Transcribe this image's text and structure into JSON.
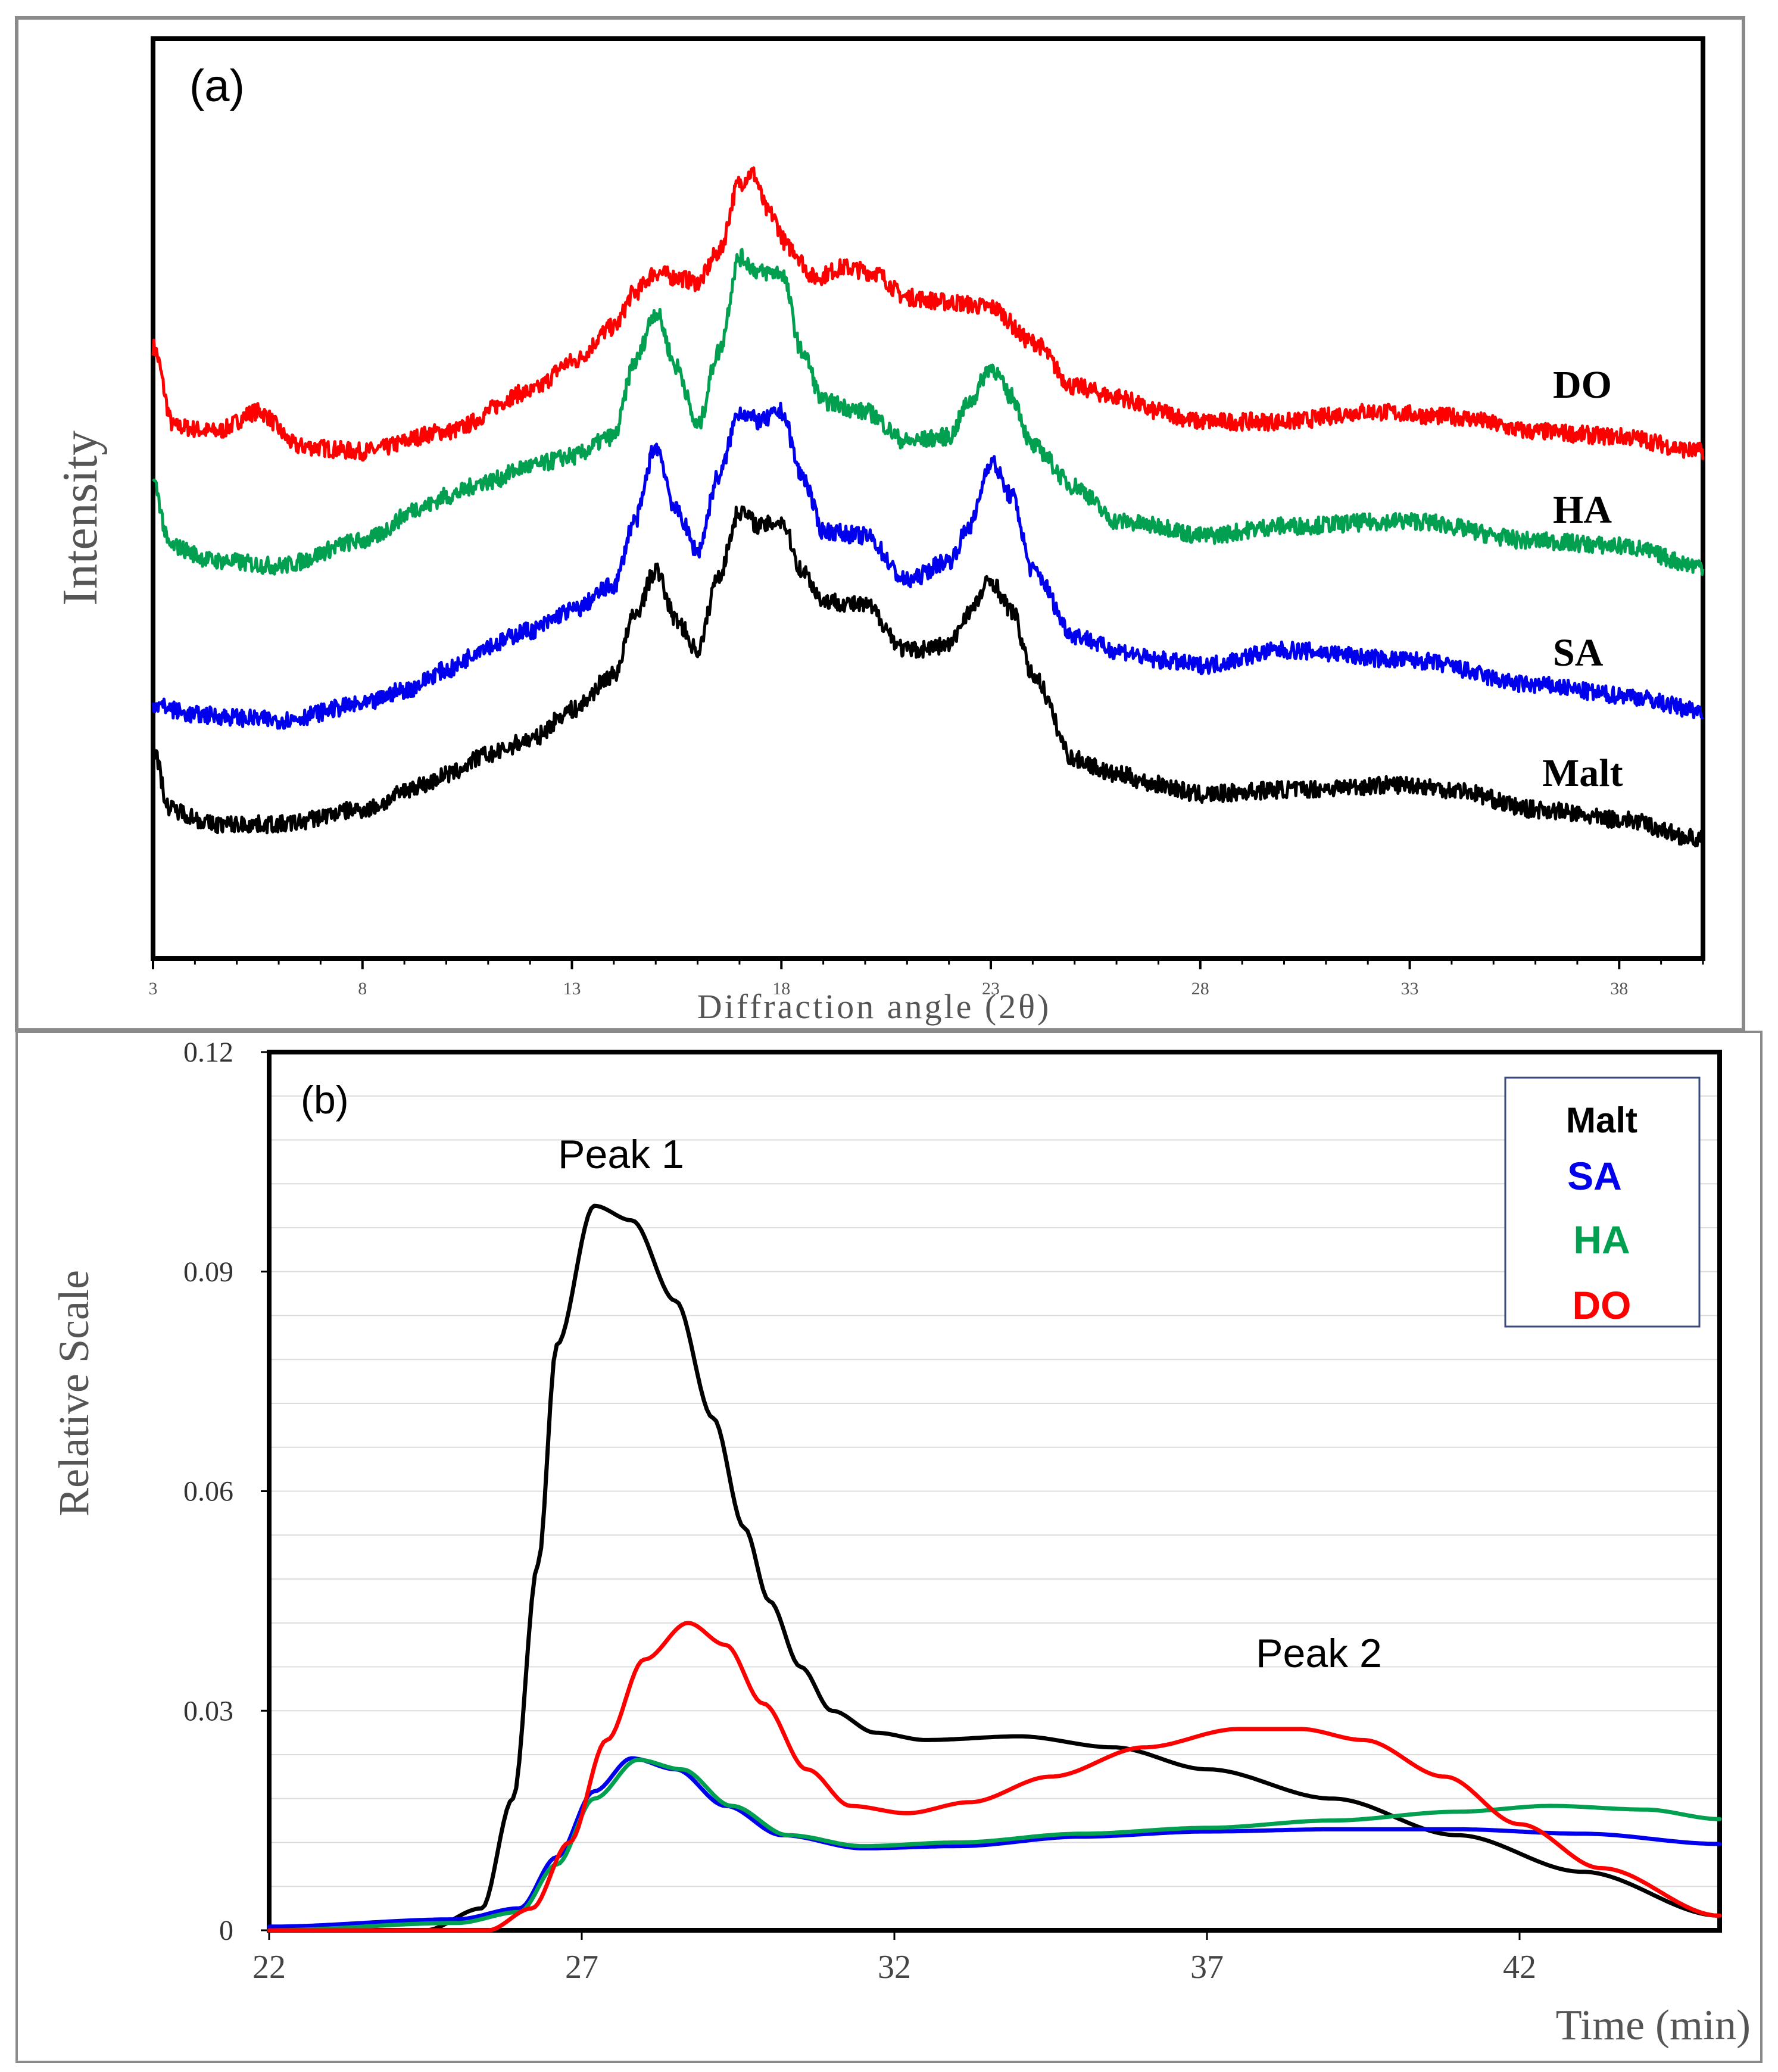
{
  "chart_data": [
    {
      "type": "line",
      "panel_label": "(a)",
      "xlabel": "Diffraction angle (2θ)",
      "ylabel": "Intensity",
      "xlim": [
        3,
        40
      ],
      "xticks": [
        3,
        8,
        13,
        18,
        23,
        28,
        33,
        38
      ],
      "ylim": [
        0,
        1.85
      ],
      "y_ticks_shown": false,
      "series": [
        {
          "name": "DO",
          "color": "#ff0000",
          "x": [
            3,
            3.5,
            4.5,
            5.5,
            6.5,
            8,
            10,
            12,
            13,
            14,
            14.5,
            15,
            15.5,
            16,
            16.5,
            17,
            17.3,
            17.7,
            18.2,
            18.8,
            19.5,
            20.2,
            21,
            22,
            23,
            24,
            25,
            26,
            27,
            28,
            30,
            32,
            34,
            36,
            38,
            40
          ],
          "y": [
            1.23,
            1.07,
            1.06,
            1.1,
            1.03,
            1.02,
            1.06,
            1.14,
            1.2,
            1.27,
            1.34,
            1.38,
            1.37,
            1.36,
            1.42,
            1.56,
            1.58,
            1.5,
            1.43,
            1.37,
            1.39,
            1.38,
            1.33,
            1.32,
            1.31,
            1.24,
            1.15,
            1.13,
            1.1,
            1.08,
            1.08,
            1.1,
            1.09,
            1.06,
            1.05,
            1.02
          ]
        },
        {
          "name": "HA",
          "color": "#00a050",
          "x": [
            3,
            3.4,
            4.5,
            6,
            8,
            9.5,
            10,
            11,
            12,
            13,
            14,
            14.5,
            15,
            15.5,
            16,
            16.5,
            17,
            17.5,
            18,
            18.5,
            19,
            20,
            21,
            22,
            22.5,
            23,
            23.5,
            24,
            25,
            26,
            27,
            28,
            30,
            33,
            36,
            38,
            40
          ],
          "y": [
            0.96,
            0.83,
            0.8,
            0.79,
            0.84,
            0.91,
            0.93,
            0.96,
            0.99,
            1.01,
            1.05,
            1.2,
            1.3,
            1.19,
            1.07,
            1.22,
            1.41,
            1.38,
            1.38,
            1.22,
            1.12,
            1.1,
            1.04,
            1.05,
            1.12,
            1.19,
            1.13,
            1.03,
            0.95,
            0.88,
            0.87,
            0.85,
            0.87,
            0.88,
            0.84,
            0.83,
            0.79
          ]
        },
        {
          "name": "SA",
          "color": "#0000ee",
          "x": [
            3,
            4,
            6,
            8,
            9,
            10,
            11,
            12,
            13,
            14,
            14.5,
            15,
            15.5,
            16,
            16.5,
            17,
            17.5,
            18,
            18.5,
            19,
            20,
            21,
            22,
            22.5,
            23,
            23.5,
            24,
            25,
            26,
            27,
            28,
            30,
            33,
            36,
            38,
            40
          ],
          "y": [
            0.51,
            0.49,
            0.48,
            0.51,
            0.54,
            0.58,
            0.63,
            0.66,
            0.7,
            0.75,
            0.88,
            1.03,
            0.9,
            0.82,
            0.97,
            1.1,
            1.08,
            1.1,
            0.97,
            0.86,
            0.85,
            0.76,
            0.8,
            0.87,
            1.0,
            0.93,
            0.78,
            0.65,
            0.62,
            0.6,
            0.59,
            0.62,
            0.6,
            0.55,
            0.53,
            0.5
          ]
        },
        {
          "name": "Malt",
          "color": "#000000",
          "x": [
            3,
            3.4,
            4.5,
            6,
            8,
            9.5,
            10,
            11,
            12,
            13,
            14,
            14.5,
            15,
            15.5,
            16,
            16.5,
            17,
            17.5,
            18,
            18.5,
            19,
            20,
            21,
            22,
            22.5,
            23,
            23.5,
            24,
            25,
            26,
            27,
            28,
            30,
            33,
            34,
            36,
            38,
            40
          ],
          "y": [
            0.42,
            0.3,
            0.27,
            0.27,
            0.3,
            0.35,
            0.37,
            0.41,
            0.44,
            0.5,
            0.57,
            0.69,
            0.78,
            0.68,
            0.62,
            0.77,
            0.9,
            0.87,
            0.88,
            0.78,
            0.72,
            0.71,
            0.62,
            0.63,
            0.7,
            0.76,
            0.7,
            0.57,
            0.4,
            0.37,
            0.35,
            0.33,
            0.34,
            0.35,
            0.34,
            0.3,
            0.28,
            0.24
          ]
        }
      ],
      "legend_labels": [
        {
          "name": "DO",
          "color": "#000000"
        },
        {
          "name": "HA",
          "color": "#000000"
        },
        {
          "name": "SA",
          "color": "#000000"
        },
        {
          "name": "Malt",
          "color": "#000000"
        }
      ]
    },
    {
      "type": "line",
      "panel_label": "(b)",
      "xlabel": "Time (min)",
      "ylabel": "Relative Scale",
      "xlim": [
        22,
        45.2
      ],
      "xticks": [
        22,
        27,
        32,
        37,
        42
      ],
      "ylim": [
        0,
        0.12
      ],
      "yticks": [
        0,
        0.03,
        0.06,
        0.09,
        0.12
      ],
      "ytick_labels": [
        "0",
        "0.03",
        "0.06",
        "0.09",
        "0.12"
      ],
      "gridlines": "horizontal",
      "annotations": [
        "Peak 1",
        "Peak 2"
      ],
      "legend_position": "top-right",
      "series": [
        {
          "name": "Malt",
          "color": "#000000",
          "x": [
            22,
            24.5,
            25.4,
            25.9,
            26.3,
            26.6,
            27.2,
            27.8,
            28.5,
            29.1,
            29.6,
            30.0,
            30.5,
            31.0,
            31.7,
            32.5,
            34.0,
            35.5,
            37.0,
            39.0,
            41.0,
            43.0,
            45.2
          ],
          "y": [
            0,
            0,
            0.003,
            0.018,
            0.05,
            0.08,
            0.099,
            0.097,
            0.086,
            0.07,
            0.055,
            0.045,
            0.036,
            0.03,
            0.027,
            0.026,
            0.0265,
            0.025,
            0.022,
            0.018,
            0.013,
            0.008,
            0.002
          ]
        },
        {
          "name": "SA",
          "color": "#0000ee",
          "x": [
            22,
            25,
            26.0,
            26.6,
            27.2,
            27.8,
            28.5,
            29.3,
            30.2,
            31.5,
            33.0,
            35.0,
            37.0,
            39.0,
            41.0,
            43.0,
            45.2
          ],
          "y": [
            0.0005,
            0.0015,
            0.003,
            0.01,
            0.019,
            0.0235,
            0.022,
            0.017,
            0.013,
            0.0112,
            0.0115,
            0.0128,
            0.0135,
            0.0138,
            0.0138,
            0.0132,
            0.0118
          ]
        },
        {
          "name": "HA",
          "color": "#00a050",
          "x": [
            22,
            25,
            26.0,
            26.6,
            27.2,
            27.9,
            28.6,
            29.4,
            30.3,
            31.5,
            33.0,
            35.0,
            37.0,
            39.0,
            41.0,
            42.5,
            44.0,
            45.2
          ],
          "y": [
            0,
            0.001,
            0.0025,
            0.009,
            0.018,
            0.0233,
            0.022,
            0.017,
            0.013,
            0.0115,
            0.012,
            0.0132,
            0.014,
            0.015,
            0.0162,
            0.017,
            0.0165,
            0.0152
          ]
        },
        {
          "name": "DO",
          "color": "#ff0000",
          "x": [
            22,
            25.5,
            26.2,
            26.8,
            27.4,
            28.0,
            28.7,
            29.3,
            29.9,
            30.6,
            31.3,
            32.2,
            33.2,
            34.5,
            36.0,
            37.5,
            38.5,
            39.5,
            40.8,
            42.0,
            43.3,
            45.2
          ],
          "y": [
            0,
            0,
            0.003,
            0.012,
            0.026,
            0.037,
            0.042,
            0.039,
            0.031,
            0.022,
            0.017,
            0.016,
            0.0175,
            0.021,
            0.025,
            0.0275,
            0.0275,
            0.026,
            0.021,
            0.0145,
            0.0085,
            0.002
          ]
        }
      ]
    }
  ]
}
